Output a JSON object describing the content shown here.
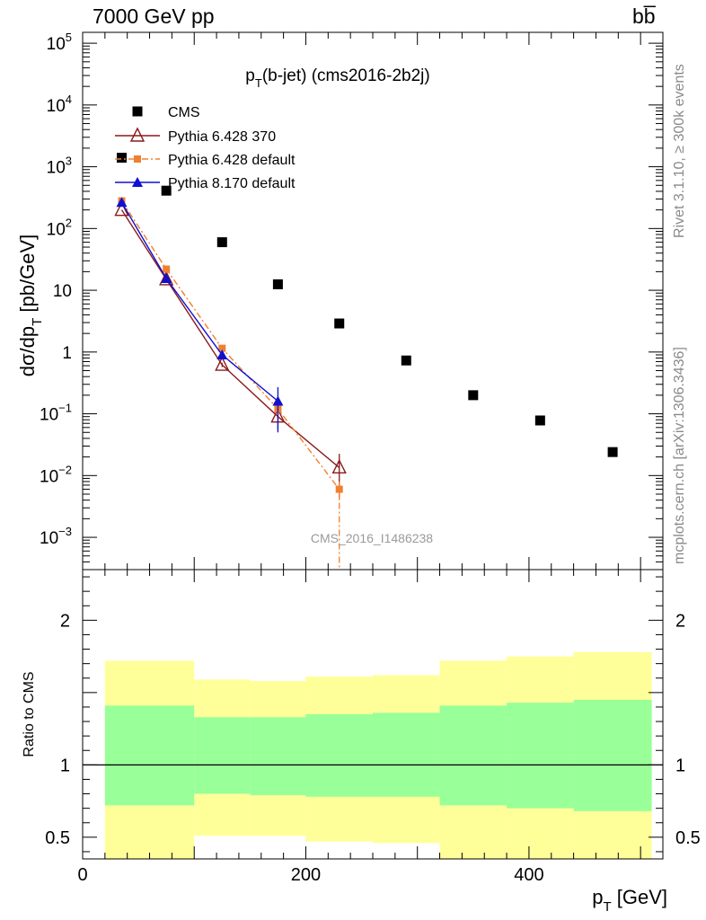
{
  "header": {
    "left": "7000 GeV pp",
    "right": "bb̅",
    "rivet": "Rivet 3.1.10, ≥ 300k events",
    "mcplots": "mcplots.cern.ch [arXiv:1306.3436]"
  },
  "colors": {
    "cms": "#000000",
    "py6_370": "#8b1a1a",
    "py6_default": "#f08030",
    "py8_default": "#1010d0",
    "band_stat": "#99ff99",
    "band_total": "#ffff99"
  },
  "chart_data": [
    {
      "type": "scatter",
      "title": "p_T(b-jet) (cms2016-2b2j)",
      "title_main": "p",
      "title_sub": "T",
      "title_rest": "(b-jet) (cms2016-2b2j)",
      "ylabel_pre": "dσ/dp",
      "ylabel_sub": "T",
      "ylabel_post": " [pb/GeV]",
      "watermark": "CMS_2016_I1486238",
      "yscale": "log",
      "xlim": [
        0,
        520
      ],
      "ylim": [
        0.0003,
        150000
      ],
      "legend_position": "top-left",
      "y_tick_labels": [
        {
          "value": 100000,
          "base": "10",
          "exp": "5"
        },
        {
          "value": 10000,
          "base": "10",
          "exp": "4"
        },
        {
          "value": 1000,
          "base": "10",
          "exp": "3"
        },
        {
          "value": 100,
          "base": "10",
          "exp": "2"
        },
        {
          "value": 10,
          "base": "10",
          "exp": ""
        },
        {
          "value": 1,
          "base": "1",
          "exp": ""
        },
        {
          "value": 0.1,
          "base": "10",
          "exp": "−1"
        },
        {
          "value": 0.01,
          "base": "10",
          "exp": "−2"
        },
        {
          "value": 0.001,
          "base": "10",
          "exp": "−3"
        }
      ],
      "series": [
        {
          "name": "CMS",
          "x": [
            35,
            75,
            125,
            175,
            230,
            290,
            350,
            410,
            475
          ],
          "y": [
            1400,
            410,
            60,
            12.5,
            2.9,
            0.73,
            0.2,
            0.078,
            0.024
          ]
        },
        {
          "name": "Pythia 6.428 370",
          "x": [
            35,
            75,
            125,
            175,
            230
          ],
          "y": [
            200,
            15,
            0.62,
            0.09,
            0.0135
          ],
          "yerr": [
            0,
            0,
            0.05,
            0.035,
            0.009
          ]
        },
        {
          "name": "Pythia 6.428 default",
          "x": [
            35,
            75,
            125,
            175,
            230
          ],
          "y": [
            280,
            22,
            1.15,
            0.12,
            0.006
          ],
          "yerr": [
            0,
            0,
            0.08,
            0.04,
            0.002
          ]
        },
        {
          "name": "Pythia 8.170 default",
          "x": [
            35,
            75,
            125,
            175
          ],
          "y": [
            265,
            15.5,
            0.9,
            0.16
          ],
          "yerr": [
            0,
            0,
            0.08,
            0.11
          ]
        }
      ]
    },
    {
      "type": "area",
      "ylabel": "Ratio to CMS",
      "xlabel_main": "p",
      "xlabel_sub": "T",
      "xlabel_post": " [GeV]",
      "xlim": [
        0,
        520
      ],
      "ylim": [
        0.35,
        2.35
      ],
      "x_tick_labels": [
        "0",
        "200",
        "400"
      ],
      "y_tick_labels": [
        "0.5",
        "1",
        "2"
      ],
      "reference_line": 1,
      "bins": [
        20,
        100,
        150,
        200,
        260,
        320,
        380,
        440,
        510
      ],
      "bands": [
        {
          "name": "stat",
          "lo": [
            0.72,
            0.8,
            0.79,
            0.78,
            0.78,
            0.72,
            0.7,
            0.68
          ],
          "hi": [
            1.41,
            1.33,
            1.33,
            1.35,
            1.36,
            1.41,
            1.43,
            1.45
          ]
        },
        {
          "name": "total",
          "lo": [
            0.35,
            0.51,
            0.51,
            0.47,
            0.46,
            0.35,
            0.35,
            0.35
          ],
          "hi": [
            1.72,
            1.59,
            1.58,
            1.61,
            1.62,
            1.72,
            1.75,
            1.78
          ]
        }
      ]
    }
  ]
}
